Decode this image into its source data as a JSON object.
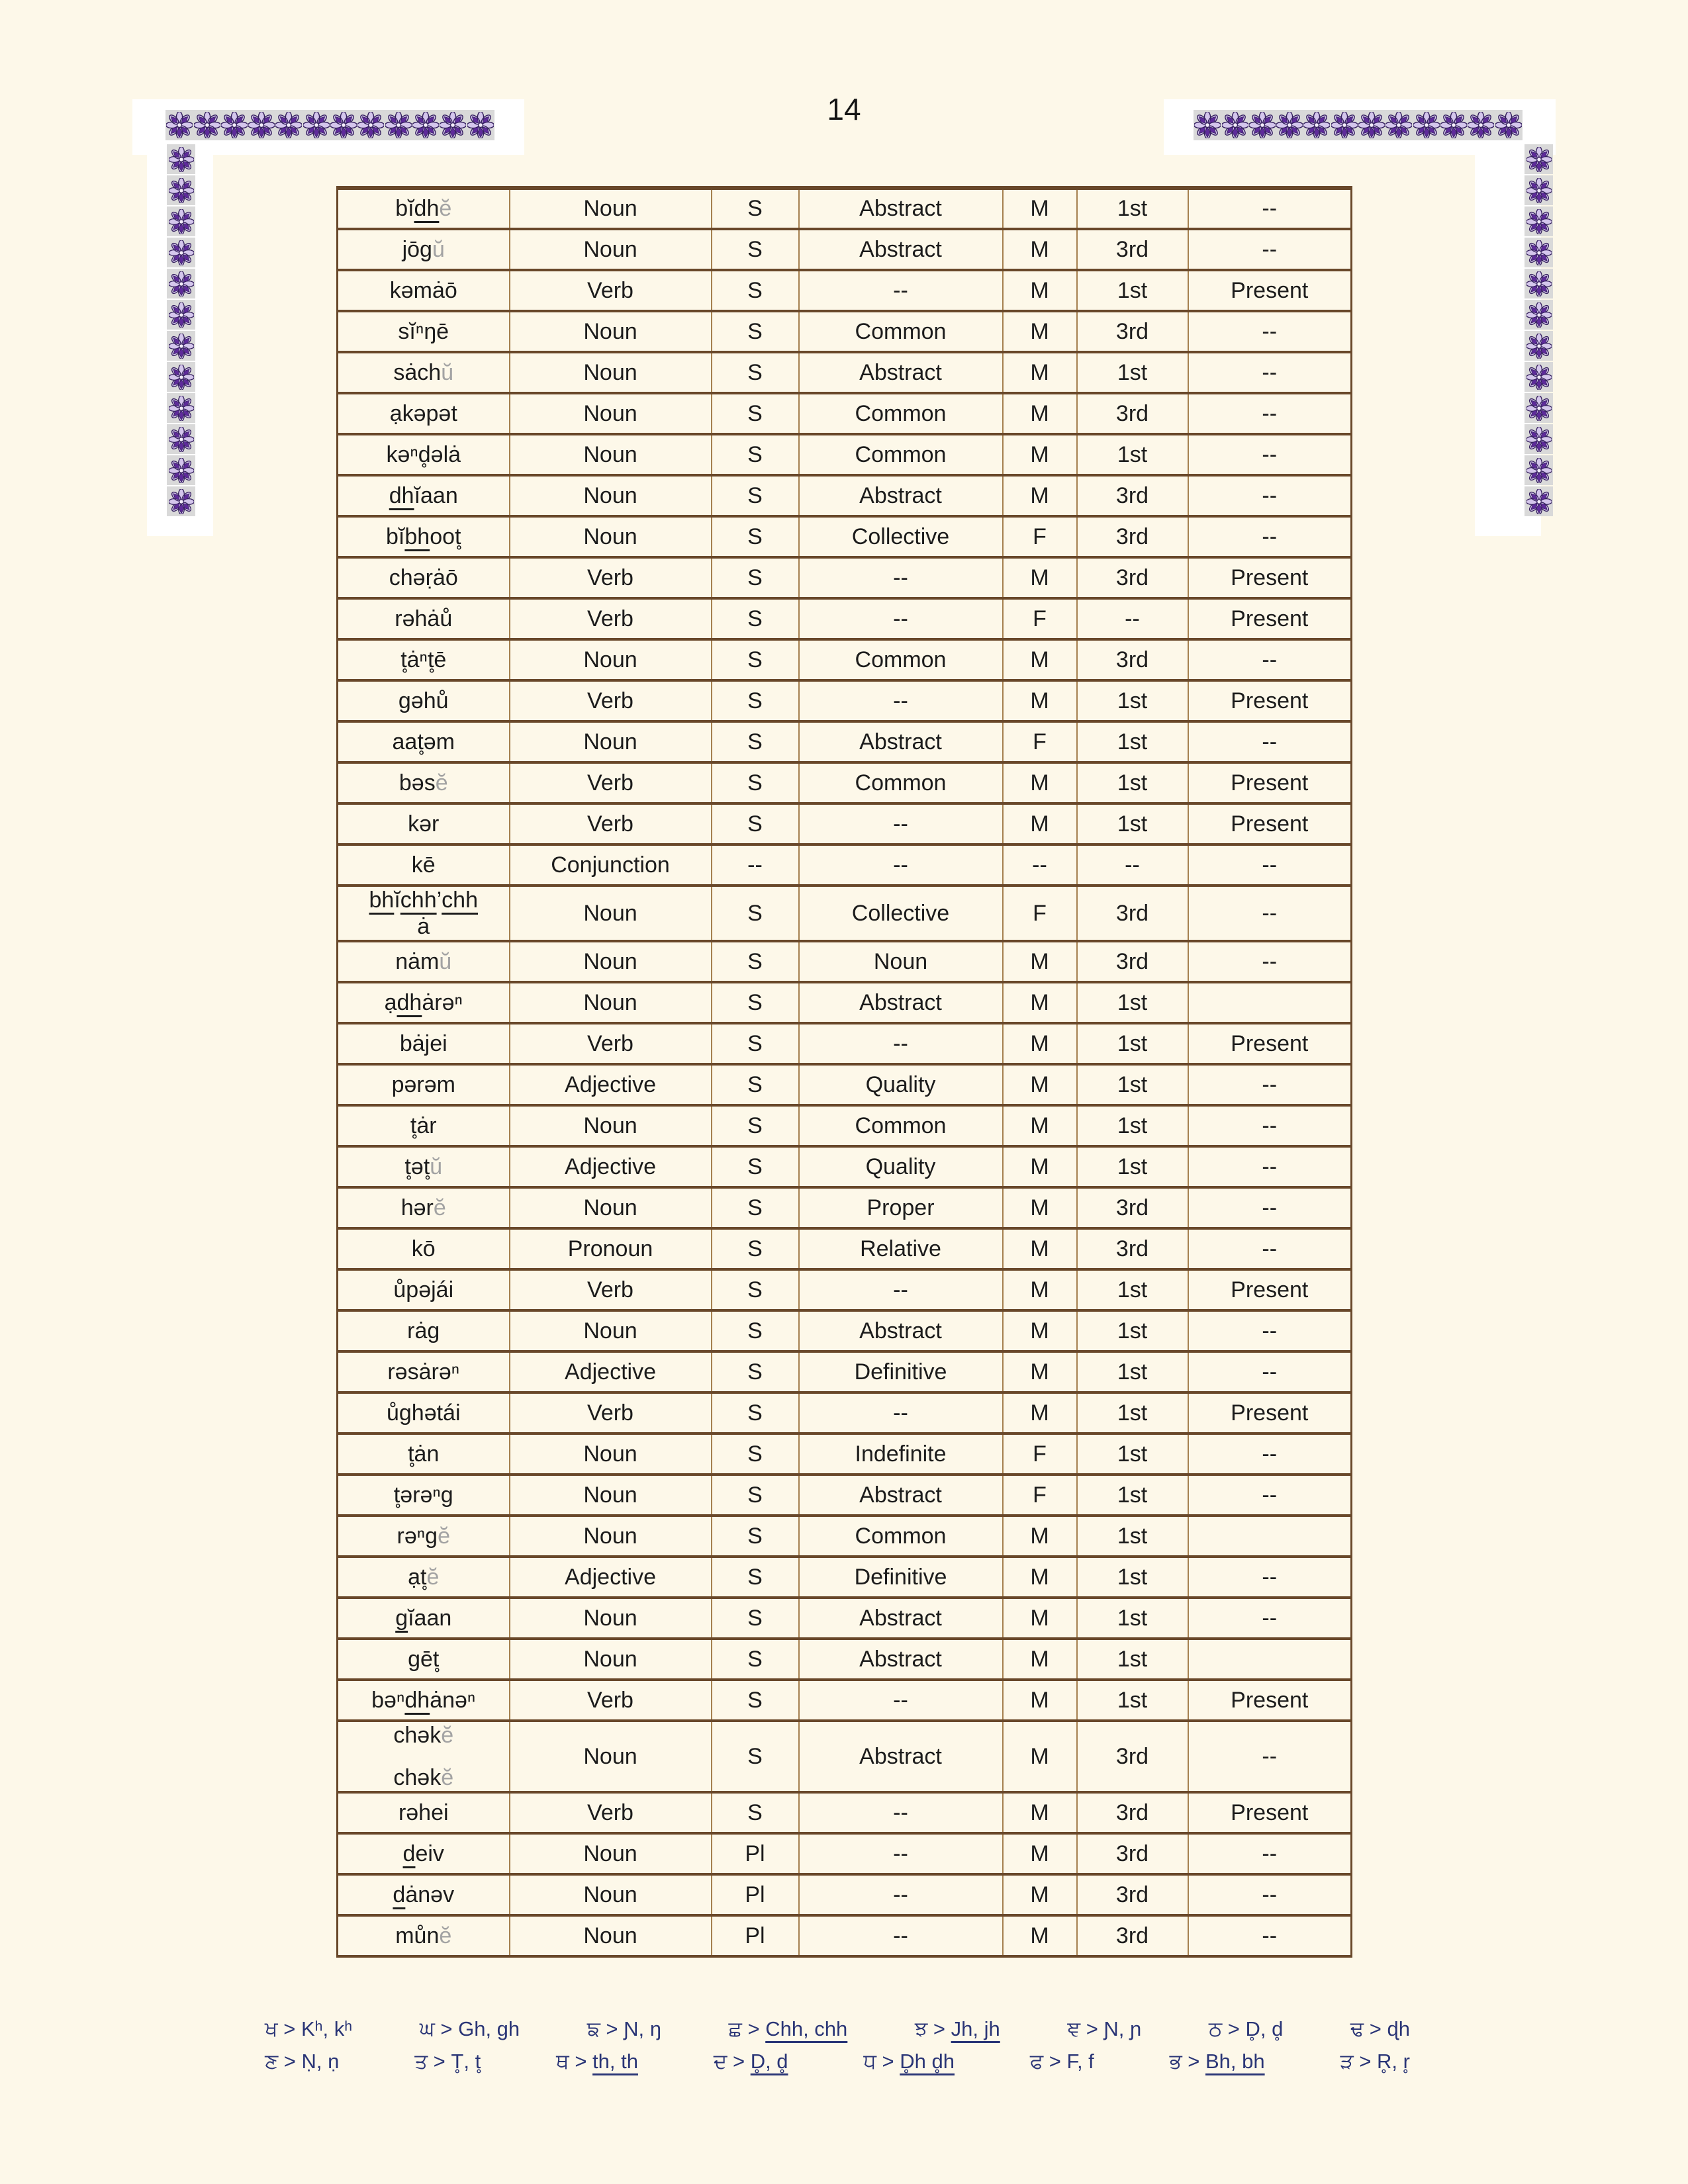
{
  "page": {
    "number": "14"
  },
  "colors": {
    "page_bg": "#fdf8e9",
    "tile_bg": "#d9d9d9",
    "border_dark": "#69482a",
    "border_light": "#a5804f",
    "word_navy": "#232e7c",
    "word_gray": "#a3a3a3",
    "word_brown": "#b5722c",
    "text_black": "#1c1c1c",
    "legend_navy": "#2a3576",
    "flower_dark": "#5e2b9a",
    "flower_light": "#d4c6ec"
  },
  "table": {
    "rows": [
      {
        "word": [
          {
            "t": "bĭ"
          },
          {
            "t": "dh",
            "u": 1
          },
          {
            "t": "ĕ",
            "gray": 1
          }
        ],
        "pos": "Noun",
        "num": "S",
        "cat": "Abstract",
        "gen": "M",
        "per": "1st",
        "tense": "--"
      },
      {
        "word": [
          {
            "t": "jōg"
          },
          {
            "t": "ŭ",
            "gray": 1
          }
        ],
        "pos": "Noun",
        "num": "S",
        "cat": "Abstract",
        "gen": "M",
        "per": "3rd",
        "tense": "--"
      },
      {
        "word": [
          {
            "t": "kəmȧō"
          }
        ],
        "pos": "Verb",
        "num": "S",
        "cat": "--",
        "gen": "M",
        "per": "1st",
        "tense": "Present"
      },
      {
        "word": [
          {
            "t": "sĭⁿŋē"
          }
        ],
        "pos": "Noun",
        "num": "S",
        "cat": "Common",
        "gen": "M",
        "per": "3rd",
        "tense": "--"
      },
      {
        "word": [
          {
            "t": "sȧch"
          },
          {
            "t": "ŭ",
            "gray": 1
          }
        ],
        "pos": "Noun",
        "num": "S",
        "cat": "Abstract",
        "gen": "M",
        "per": "1st",
        "tense": "--"
      },
      {
        "word": [
          {
            "t": "ạkəpət"
          }
        ],
        "pos": "Noun",
        "num": "S",
        "cat": "Common",
        "gen": "M",
        "per": "3rd",
        "tense": "--"
      },
      {
        "word": [
          {
            "t": "kəⁿd̥əlȧ"
          }
        ],
        "pos": "Noun",
        "num": "S",
        "cat": "Common",
        "gen": "M",
        "per": "1st",
        "tense": "--"
      },
      {
        "word": [
          {
            "t": "dh",
            "u": 1
          },
          {
            "t": "ĭaan"
          }
        ],
        "pos": "Noun",
        "num": "S",
        "cat": "Abstract",
        "gen": "M",
        "per": "3rd",
        "tense": "--"
      },
      {
        "word": [
          {
            "t": "bĭ"
          },
          {
            "t": "bh",
            "u": 1
          },
          {
            "t": "oot̥"
          }
        ],
        "pos": "Noun",
        "num": "S",
        "cat": "Collective",
        "gen": "F",
        "per": "3rd",
        "tense": "--"
      },
      {
        "word": [
          {
            "t": "chəṛȧō"
          }
        ],
        "pos": "Verb",
        "num": "S",
        "cat": "--",
        "gen": "M",
        "per": "3rd",
        "tense": "Present"
      },
      {
        "word": [
          {
            "t": "rəhȧů"
          }
        ],
        "wc": "brown",
        "pos": "Verb",
        "num": "S",
        "cat": "--",
        "gen": "F",
        "per": "--",
        "tense": "Present"
      },
      {
        "word": [
          {
            "t": "t̥ȧⁿt̥ē"
          }
        ],
        "pos": "Noun",
        "num": "S",
        "cat": "Common",
        "gen": "M",
        "per": "3rd",
        "tense": "--"
      },
      {
        "word": [
          {
            "t": "gəhů"
          }
        ],
        "pos": "Verb",
        "num": "S",
        "cat": "--",
        "gen": "M",
        "per": "1st",
        "tense": "Present"
      },
      {
        "word": [
          {
            "t": "aat̥əm"
          }
        ],
        "pos": "Noun",
        "num": "S",
        "cat": "Abstract",
        "gen": "F",
        "per": "1st",
        "tense": "--"
      },
      {
        "word": [
          {
            "t": "bəs"
          },
          {
            "t": "ĕ",
            "gray": 1
          }
        ],
        "pos": "Verb",
        "num": "S",
        "cat": "Common",
        "gen": "M",
        "per": "1st",
        "tense": "Present"
      },
      {
        "word": [
          {
            "t": "kər"
          }
        ],
        "pos": "Verb",
        "num": "S",
        "cat": "--",
        "gen": "M",
        "per": "1st",
        "tense": "Present"
      },
      {
        "word": [
          {
            "t": "kē"
          }
        ],
        "pos": "Conjunction",
        "num": "--",
        "cat": "--",
        "gen": "--",
        "per": "--",
        "tense": "--"
      },
      {
        "word": [
          {
            "t": "bh",
            "u": 1
          },
          {
            "t": "ĭ"
          },
          {
            "t": "chh",
            "u": 1
          },
          {
            "t": "’"
          },
          {
            "t": "chh",
            "u": 1
          }
        ],
        "word2": [
          {
            "t": "ȧ"
          }
        ],
        "pos": "Noun",
        "num": "S",
        "cat": "Collective",
        "gen": "F",
        "per": "3rd",
        "tense": "--"
      },
      {
        "word": [
          {
            "t": "nȧm"
          },
          {
            "t": "ŭ",
            "gray": 1
          }
        ],
        "pos": "Noun",
        "num": "S",
        "cat": "Noun",
        "gen": "M",
        "per": "3rd",
        "tense": "--"
      },
      {
        "word": [
          {
            "t": "ạ"
          },
          {
            "t": "dh",
            "u": 1
          },
          {
            "t": "ȧrəⁿ"
          }
        ],
        "pos": "Noun",
        "num": "S",
        "cat": "Abstract",
        "gen": "M",
        "per": "1st",
        "tense": ""
      },
      {
        "word": [
          {
            "t": "bȧjei"
          }
        ],
        "pos": "Verb",
        "num": "S",
        "cat": "--",
        "gen": "M",
        "per": "1st",
        "tense": "Present"
      },
      {
        "word": [
          {
            "t": "pərəm"
          }
        ],
        "pos": "Adjective",
        "num": "S",
        "cat": "Quality",
        "gen": "M",
        "per": "1st",
        "tense": "--"
      },
      {
        "word": [
          {
            "t": "t̥ȧr"
          }
        ],
        "pos": "Noun",
        "num": "S",
        "cat": "Common",
        "gen": "M",
        "per": "1st",
        "tense": "--"
      },
      {
        "word": [
          {
            "t": "t̥ət̥"
          },
          {
            "t": "ŭ",
            "gray": 1
          }
        ],
        "pos": "Adjective",
        "num": "S",
        "cat": "Quality",
        "gen": "M",
        "per": "1st",
        "tense": "--"
      },
      {
        "word": [
          {
            "t": "hər"
          },
          {
            "t": "ĕ",
            "gray": 1
          }
        ],
        "pos": "Noun",
        "num": "S",
        "cat": "Proper",
        "gen": "M",
        "per": "3rd",
        "tense": "--"
      },
      {
        "word": [
          {
            "t": "kō"
          }
        ],
        "pos": "Pronoun",
        "num": "S",
        "cat": "Relative",
        "gen": "M",
        "per": "3rd",
        "tense": "--"
      },
      {
        "word": [
          {
            "t": "ůpəjái"
          }
        ],
        "pos": "Verb",
        "num": "S",
        "cat": "--",
        "gen": "M",
        "per": "1st",
        "tense": "Present"
      },
      {
        "word": [
          {
            "t": "rȧg"
          }
        ],
        "pos": "Noun",
        "num": "S",
        "cat": "Abstract",
        "gen": "M",
        "per": "1st",
        "tense": "--"
      },
      {
        "word": [
          {
            "t": "rəsȧrəⁿ"
          }
        ],
        "pos": "Adjective",
        "num": "S",
        "cat": "Definitive",
        "gen": "M",
        "per": "1st",
        "tense": "--"
      },
      {
        "word": [
          {
            "t": "ůghətái"
          }
        ],
        "pos": "Verb",
        "num": "S",
        "cat": "--",
        "gen": "M",
        "per": "1st",
        "tense": "Present"
      },
      {
        "word": [
          {
            "t": "t̥ȧn"
          }
        ],
        "pos": "Noun",
        "num": "S",
        "cat": "Indefinite",
        "gen": "F",
        "per": "1st",
        "tense": "--"
      },
      {
        "word": [
          {
            "t": "t̥ərəⁿg"
          }
        ],
        "pos": "Noun",
        "num": "S",
        "cat": "Abstract",
        "gen": "F",
        "per": "1st",
        "tense": "--"
      },
      {
        "word": [
          {
            "t": "rəⁿg"
          },
          {
            "t": "ĕ",
            "gray": 1
          }
        ],
        "pos": "Noun",
        "num": "S",
        "cat": "Common",
        "gen": "M",
        "per": "1st",
        "tense": ""
      },
      {
        "word": [
          {
            "t": "ạt̥"
          },
          {
            "t": "ĕ",
            "gray": 1
          }
        ],
        "pos": "Adjective",
        "num": "S",
        "cat": "Definitive",
        "gen": "M",
        "per": "1st",
        "tense": "--"
      },
      {
        "word": [
          {
            "t": "g",
            "u": 1
          },
          {
            "t": "ĭaan"
          }
        ],
        "pos": "Noun",
        "num": "S",
        "cat": "Abstract",
        "gen": "M",
        "per": "1st",
        "tense": "--"
      },
      {
        "word": [
          {
            "t": "gēt̥"
          }
        ],
        "pos": "Noun",
        "num": "S",
        "cat": "Abstract",
        "gen": "M",
        "per": "1st",
        "tense": ""
      },
      {
        "word": [
          {
            "t": "bəⁿ"
          },
          {
            "t": "dh",
            "u": 1
          },
          {
            "t": "ȧnəⁿ"
          }
        ],
        "pos": "Verb",
        "num": "S",
        "cat": "--",
        "gen": "M",
        "per": "1st",
        "tense": "Present"
      },
      {
        "word": [
          {
            "t": "chək"
          },
          {
            "t": "ĕ",
            "gray": 1
          }
        ],
        "word2": [
          {
            "t": "chək"
          },
          {
            "t": "ĕ",
            "gray": 1
          }
        ],
        "sp": 1,
        "pos": "Noun",
        "num": "S",
        "cat": "Abstract",
        "gen": "M",
        "per": "3rd",
        "tense": "--"
      },
      {
        "word": [
          {
            "t": "rəhei"
          }
        ],
        "pos": "Verb",
        "num": "S",
        "cat": "--",
        "gen": "M",
        "per": "3rd",
        "tense": "Present"
      },
      {
        "word": [
          {
            "t": "d",
            "u": 1
          },
          {
            "t": "eiv"
          }
        ],
        "pos": "Noun",
        "num": "Pl",
        "cat": "--",
        "gen": "M",
        "per": "3rd",
        "tense": "--"
      },
      {
        "word": [
          {
            "t": "d",
            "u": 1
          },
          {
            "t": "ȧnəv"
          }
        ],
        "pos": "Noun",
        "num": "Pl",
        "cat": "--",
        "gen": "M",
        "per": "3rd",
        "tense": "--"
      },
      {
        "word": [
          {
            "t": "můn"
          },
          {
            "t": "ĕ",
            "gray": 1
          }
        ],
        "pos": "Noun",
        "num": "Pl",
        "cat": "--",
        "gen": "M",
        "per": "3rd",
        "tense": "--"
      }
    ]
  },
  "legend": {
    "rows": [
      [
        {
          "g": "ਖ",
          "t": "Kʰ, kʰ"
        },
        {
          "g": "ਘ",
          "t": "Gh, gh"
        },
        {
          "g": "ਙ",
          "t": "Ɲ, ŋ"
        },
        {
          "g": "ਛ",
          "t": "Chh, chh",
          "u": 1
        },
        {
          "g": "ਝ",
          "t": "Jh, jh",
          "u": 1
        },
        {
          "g": "ਞ",
          "t": "Ɲ, ɲ"
        },
        {
          "g": "ਠ",
          "t": "D̥, d̥"
        },
        {
          "g": "ਢ",
          "t": "ɖh"
        }
      ],
      [
        {
          "g": "ਣ",
          "t": "Ṇ, ṇ"
        },
        {
          "g": "ਤ",
          "t": "T̥, t̥"
        },
        {
          "g": "ਥ",
          "t": "th, th",
          "u": 1
        },
        {
          "g": "ਦ",
          "t": "D̥, d̥",
          "u": 1
        },
        {
          "g": "ਧ",
          "t": "D̥h d̥h",
          "u": 1
        },
        {
          "g": "ਫ",
          "t": "F, f"
        },
        {
          "g": "ਭ",
          "t": "Bh, bh",
          "u": 1
        },
        {
          "g": "ੜ",
          "t": "R̥, r̥"
        }
      ]
    ]
  }
}
